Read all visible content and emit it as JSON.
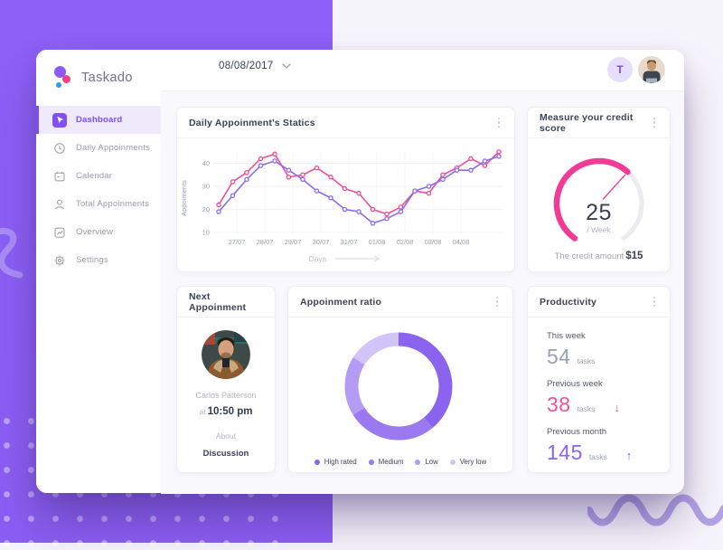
{
  "theme": {
    "purple": "#8d60f7",
    "pink": "#f0437e",
    "accent": "#7c4ef5",
    "bg": "#f6f4fb"
  },
  "brand": {
    "name": "Taskado"
  },
  "header": {
    "date": "08/08/2017",
    "badge": "T"
  },
  "sidebar": {
    "items": [
      {
        "label": "Dashboard",
        "icon": "dashboard-cursor-icon",
        "active": true
      },
      {
        "label": "Daily Appoinments",
        "icon": "clock-icon",
        "active": false
      },
      {
        "label": "Calendar",
        "icon": "calendar-icon",
        "active": false
      },
      {
        "label": "Total Appoinments",
        "icon": "person-icon",
        "active": false
      },
      {
        "label": "Overview",
        "icon": "overview-chart-icon",
        "active": false
      },
      {
        "label": "Settings",
        "icon": "gear-icon",
        "active": false
      }
    ]
  },
  "cards": {
    "appointments": {
      "title": "Daily Appoinment's Statics",
      "chart_data": {
        "type": "line",
        "x_labels": [
          "27/07",
          "28/07",
          "29/07",
          "30/07",
          "31/07",
          "01/08",
          "02/08",
          "03/08",
          "04/08"
        ],
        "ylabel": "Appoiments",
        "xlabel": "Days",
        "yticks": [
          10,
          20,
          30,
          40
        ],
        "ylim": [
          5,
          50
        ],
        "grid": true,
        "series": [
          {
            "name": "appointments-pink",
            "color": "#f04d96",
            "values": [
              22,
              32,
              36,
              42,
              44,
              34,
              35,
              38,
              34,
              29,
              27,
              20,
              18,
              21,
              28,
              27,
              35,
              38,
              42,
              39,
              45
            ]
          },
          {
            "name": "appointments-purple",
            "color": "#8a6cf0",
            "values": [
              19,
              26,
              33,
              39,
              41,
              37,
              33,
              28,
              25,
              20,
              19,
              14,
              16,
              19,
              28,
              30,
              33,
              37,
              37,
              41,
              43
            ]
          }
        ]
      }
    },
    "credit": {
      "title": "Measure your credit score",
      "score": "25",
      "unit": "/ Week",
      "note": "The credit amount",
      "amount": "$15",
      "gauge": {
        "start_angle": -145,
        "end_angle": 145,
        "value_angle": 42,
        "color": "#f23b97",
        "track": "#ebebf0"
      }
    },
    "next": {
      "title": "Next Appoinment",
      "name": "Carlos Patterson",
      "time_prefix": "at",
      "time": "10:50 pm",
      "about_label": "About",
      "about_value": "Discussion"
    },
    "ratio": {
      "title": "Appoinment ratio",
      "chart_data": {
        "type": "pie",
        "donut": true,
        "legend_position": "bottom",
        "segments": [
          {
            "label": "High rated",
            "value": 39,
            "color": "#8a63ee"
          },
          {
            "label": "Medium",
            "value": 27,
            "color": "#9a79f1"
          },
          {
            "label": "Low",
            "value": 18,
            "color": "#b49cf4"
          },
          {
            "label": "Very low",
            "value": 16,
            "color": "#d2c3f8"
          }
        ]
      }
    },
    "productivity": {
      "title": "Productivity",
      "rows": [
        {
          "label": "This week",
          "value": "54",
          "unit": "tasks",
          "trend": "none",
          "color": "#9aa0ad"
        },
        {
          "label": "Previous week",
          "value": "38",
          "unit": "tasks",
          "trend": "down",
          "color": "#f2509a"
        },
        {
          "label": "Previous month",
          "value": "145",
          "unit": "tasks",
          "trend": "up",
          "color": "#8a63f0"
        }
      ]
    }
  }
}
